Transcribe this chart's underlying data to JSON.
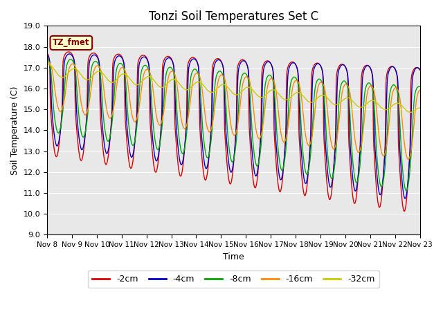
{
  "title": "Tonzi Soil Temperatures Set C",
  "ylabel": "Soil Temperature (C)",
  "xlabel": "Time",
  "ylim": [
    9.0,
    19.0
  ],
  "yticks": [
    9.0,
    10.0,
    11.0,
    12.0,
    13.0,
    14.0,
    15.0,
    16.0,
    17.0,
    18.0,
    19.0
  ],
  "xtick_labels": [
    "Nov 8",
    "Nov 9",
    "Nov 10",
    "Nov 11",
    "Nov 12",
    "Nov 13",
    "Nov 14",
    "Nov 15",
    "Nov 16",
    "Nov 17",
    "Nov 18",
    "Nov 19",
    "Nov 20",
    "Nov 21",
    "Nov 22",
    "Nov 23"
  ],
  "label_box_text": "TZ_fmet",
  "label_box_color": "#ffffcc",
  "label_box_edge": "#880000",
  "bg_color": "#e8e8e8",
  "line_colors": [
    "#dd0000",
    "#0000cc",
    "#00aa00",
    "#ff8800",
    "#cccc00"
  ],
  "line_labels": [
    "-2cm",
    "-4cm",
    "-8cm",
    "-16cm",
    "-32cm"
  ],
  "line_width": 1.0,
  "title_fontsize": 12,
  "axis_fontsize": 9,
  "tick_fontsize": 8
}
